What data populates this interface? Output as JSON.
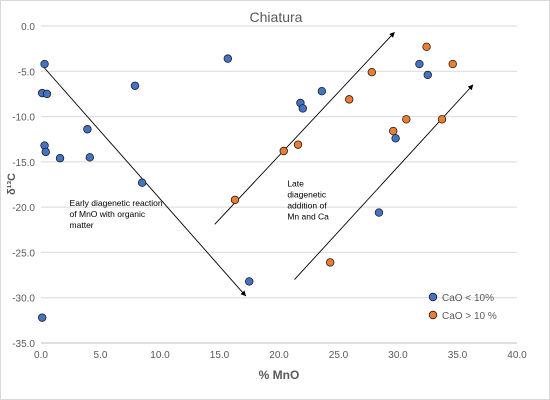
{
  "chart_data": {
    "type": "scatter",
    "title": "Chiatura",
    "xlabel": "% MnO",
    "ylabel": "δ¹³C",
    "xlim": [
      0,
      40
    ],
    "ylim": [
      -35,
      0
    ],
    "x_ticks": [
      0,
      5,
      10,
      15,
      20,
      25,
      30,
      35,
      40
    ],
    "x_tick_labels": [
      "0.0",
      "5.0",
      "10.0",
      "15.0",
      "20.0",
      "25.0",
      "30.0",
      "35.0",
      "40.0"
    ],
    "y_ticks": [
      0,
      -5,
      -10,
      -15,
      -20,
      -25,
      -30,
      -35
    ],
    "y_tick_labels": [
      "0.0",
      "-5.0",
      "-10.0",
      "-15.0",
      "-20.0",
      "-25.0",
      "-30.0",
      "-35.0"
    ],
    "grid": "horizontal",
    "legend_position": "bottom-right",
    "series": [
      {
        "name": "CaO < 10%",
        "color": "#4472c4",
        "points": [
          [
            0.3,
            -4.2
          ],
          [
            0.1,
            -7.4
          ],
          [
            0.5,
            -7.5
          ],
          [
            0.3,
            -13.2
          ],
          [
            0.4,
            -13.9
          ],
          [
            1.6,
            -14.6
          ],
          [
            3.9,
            -11.4
          ],
          [
            4.1,
            -14.5
          ],
          [
            7.9,
            -6.6
          ],
          [
            8.5,
            -17.3
          ],
          [
            15.7,
            -3.6
          ],
          [
            17.5,
            -28.2
          ],
          [
            0.1,
            -32.2
          ],
          [
            21.8,
            -8.5
          ],
          [
            22.0,
            -9.1
          ],
          [
            23.6,
            -7.2
          ],
          [
            28.4,
            -20.6
          ],
          [
            29.8,
            -12.4
          ],
          [
            31.8,
            -4.2
          ],
          [
            32.5,
            -5.4
          ]
        ]
      },
      {
        "name": "CaO > 10 %",
        "color": "#ed7d31",
        "points": [
          [
            16.3,
            -19.2
          ],
          [
            20.4,
            -13.8
          ],
          [
            21.6,
            -13.1
          ],
          [
            24.3,
            -26.1
          ],
          [
            25.9,
            -8.1
          ],
          [
            27.8,
            -5.1
          ],
          [
            29.6,
            -11.6
          ],
          [
            30.7,
            -10.3
          ],
          [
            32.4,
            -2.3
          ],
          [
            33.7,
            -10.3
          ],
          [
            34.6,
            -4.2
          ]
        ]
      }
    ],
    "arrows": [
      {
        "from": [
          0.2,
          -4.5
        ],
        "to": [
          17.2,
          -29.8
        ]
      },
      {
        "from": [
          14.6,
          -21.9
        ],
        "to": [
          29.7,
          -0.7
        ]
      },
      {
        "from": [
          21.3,
          -28.0
        ],
        "to": [
          36.3,
          -6.5
        ]
      }
    ],
    "annotations": [
      {
        "lines": [
          "Early diagenetic reaction",
          "of MnO with organic",
          "matter"
        ],
        "x": 2.4,
        "y": -19.9
      },
      {
        "lines": [
          "Late",
          "diagenetic",
          "addition of",
          "Mn and Ca"
        ],
        "x": 20.7,
        "y": -17.7
      }
    ]
  }
}
